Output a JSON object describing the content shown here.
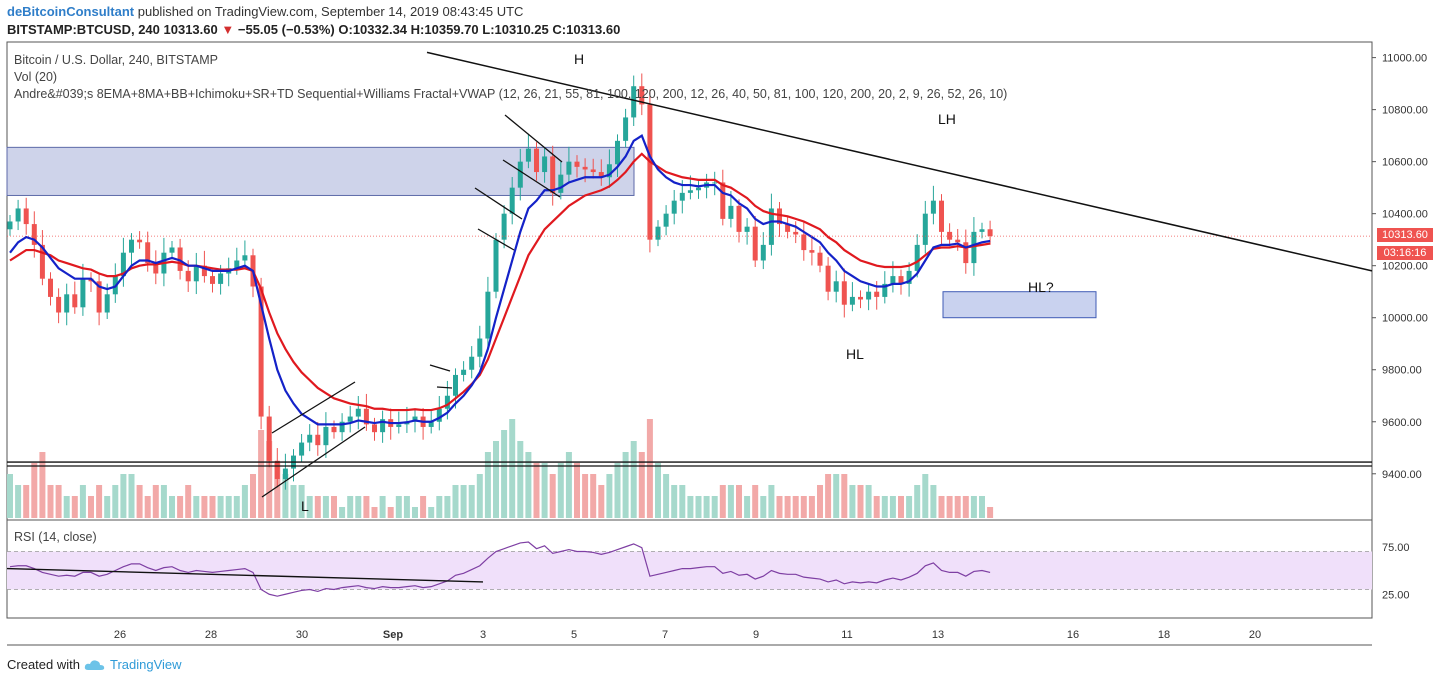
{
  "header": {
    "author": "deBitcoinConsultant",
    "published_text": "published on TradingView.com, September 14, 2019 08:43:45 UTC",
    "symbol": "BITSTAMP:BTCUSD, 240",
    "last": "10313.60",
    "change": "−55.05 (−0.53%)",
    "o_label": "O:",
    "o_value": "10332.34",
    "h_label": "H:",
    "h_value": "10359.70",
    "l_label": "L:",
    "l_value": "10310.25",
    "c_label": "C:",
    "c_value": "10313.60"
  },
  "legend": {
    "title": "Bitcoin / U.S. Dollar, 240, BITSTAMP",
    "vol": "Vol (20)",
    "indicator": "Andre&#039;s 8EMA+8MA+BB+Ichimoku+SR+TD Sequential+Williams Fractal+VWAP (12, 26, 21, 55, 81, 100, 120, 200, 12, 26, 40, 50, 81, 100, 120, 200, 20, 2, 9, 26, 52, 26, 10)",
    "rsi": "RSI (14, close)"
  },
  "price_badges": {
    "last": "10313.60",
    "countdown": "03:16:16"
  },
  "annotations": {
    "H": "H",
    "LH": "LH",
    "HL_q": "HL?",
    "HL": "HL",
    "L": "L"
  },
  "footer": {
    "created_with": "Created with",
    "brand": "TradingView"
  },
  "colors": {
    "up": "#26a69a",
    "down": "#ef5350",
    "ema_fast": "#1422c8",
    "ema_slow": "#e0191f",
    "zone": "#c5cbe6",
    "rsi_band": "#f0e0fa"
  },
  "chart_data": {
    "type": "candlestick",
    "timeframe": "240",
    "price_axis": {
      "ylim": [
        9230,
        11060
      ],
      "ticks": [
        "11000.00",
        "10800.00",
        "10600.00",
        "10400.00",
        "10200.00",
        "10000.00",
        "9800.00",
        "9600.00",
        "9400.00"
      ]
    },
    "rsi_axis": {
      "ylim": [
        0,
        100
      ],
      "ticks": [
        "75.00",
        "25.00"
      ],
      "band": [
        30,
        70
      ]
    },
    "x_axis": {
      "tick_labels": [
        "26",
        "28",
        "30",
        "Sep",
        "3",
        "5",
        "7",
        "9",
        "11",
        "13",
        "16",
        "18",
        "20"
      ]
    },
    "close_series": [
      10370,
      10420,
      10360,
      10280,
      10150,
      10080,
      10020,
      10090,
      10040,
      10150,
      10140,
      10020,
      10090,
      10160,
      10250,
      10300,
      10290,
      10210,
      10170,
      10250,
      10270,
      10180,
      10140,
      10200,
      10160,
      10130,
      10170,
      10190,
      10220,
      10240,
      10120,
      9620,
      9450,
      9380,
      9420,
      9470,
      9520,
      9550,
      9510,
      9580,
      9560,
      9600,
      9620,
      9650,
      9590,
      9560,
      9610,
      9580,
      9590,
      9600,
      9620,
      9580,
      9600,
      9650,
      9700,
      9780,
      9800,
      9850,
      9920,
      10100,
      10300,
      10400,
      10500,
      10600,
      10650,
      10560,
      10620,
      10480,
      10550,
      10600,
      10580,
      10570,
      10560,
      10540,
      10590,
      10680,
      10770,
      10890,
      10820,
      10300,
      10350,
      10400,
      10450,
      10480,
      10490,
      10500,
      10520,
      10520,
      10380,
      10430,
      10330,
      10350,
      10220,
      10280,
      10420,
      10360,
      10330,
      10320,
      10260,
      10250,
      10200,
      10100,
      10140,
      10050,
      10080,
      10070,
      10100,
      10080,
      10130,
      10160,
      10130,
      10180,
      10280,
      10400,
      10450,
      10330,
      10300,
      10290,
      10210,
      10330,
      10340,
      10313.6
    ],
    "ema_fast": [
      10250,
      10290,
      10310,
      10300,
      10270,
      10230,
      10190,
      10170,
      10150,
      10150,
      10150,
      10120,
      10110,
      10120,
      10160,
      10200,
      10220,
      10220,
      10210,
      10220,
      10230,
      10220,
      10200,
      10200,
      10190,
      10180,
      10180,
      10180,
      10190,
      10200,
      10180,
      10050,
      9920,
      9800,
      9720,
      9670,
      9630,
      9610,
      9590,
      9590,
      9590,
      9590,
      9595,
      9605,
      9600,
      9595,
      9600,
      9595,
      9595,
      9598,
      9605,
      9600,
      9600,
      9615,
      9635,
      9670,
      9700,
      9740,
      9790,
      9880,
      10000,
      10110,
      10220,
      10330,
      10420,
      10450,
      10490,
      10490,
      10500,
      10520,
      10530,
      10540,
      10540,
      10540,
      10550,
      10580,
      10620,
      10680,
      10700,
      10620,
      10570,
      10540,
      10520,
      10510,
      10510,
      10505,
      10510,
      10510,
      10480,
      10470,
      10440,
      10420,
      10380,
      10360,
      10370,
      10370,
      10360,
      10350,
      10330,
      10310,
      10290,
      10250,
      10220,
      10180,
      10160,
      10140,
      10130,
      10120,
      10120,
      10130,
      10130,
      10140,
      10170,
      10220,
      10270,
      10280,
      10280,
      10285,
      10270,
      10280,
      10290,
      10295
    ],
    "ema_slow": [
      10220,
      10240,
      10260,
      10260,
      10250,
      10240,
      10220,
      10210,
      10200,
      10190,
      10185,
      10170,
      10160,
      10160,
      10170,
      10190,
      10200,
      10205,
      10205,
      10210,
      10215,
      10210,
      10200,
      10200,
      10195,
      10190,
      10185,
      10185,
      10185,
      10190,
      10180,
      10110,
      10020,
      9940,
      9880,
      9830,
      9790,
      9760,
      9730,
      9710,
      9690,
      9680,
      9670,
      9665,
      9660,
      9650,
      9650,
      9645,
      9645,
      9645,
      9648,
      9645,
      9645,
      9652,
      9665,
      9690,
      9715,
      9745,
      9780,
      9840,
      9920,
      10000,
      10080,
      10160,
      10240,
      10290,
      10340,
      10370,
      10400,
      10430,
      10450,
      10470,
      10480,
      10490,
      10505,
      10530,
      10560,
      10600,
      10630,
      10600,
      10580,
      10560,
      10550,
      10540,
      10535,
      10530,
      10530,
      10530,
      10510,
      10500,
      10480,
      10460,
      10430,
      10410,
      10400,
      10395,
      10390,
      10380,
      10370,
      10355,
      10340,
      10310,
      10290,
      10260,
      10240,
      10220,
      10210,
      10200,
      10195,
      10195,
      10195,
      10200,
      10215,
      10240,
      10265,
      10270,
      10270,
      10275,
      10270,
      10275,
      10280,
      10285
    ],
    "rsi": [
      54,
      55,
      55,
      52,
      48,
      46,
      44,
      45,
      44,
      48,
      48,
      44,
      46,
      50,
      54,
      57,
      57,
      53,
      50,
      53,
      54,
      50,
      48,
      50,
      49,
      48,
      49,
      50,
      51,
      52,
      48,
      30,
      25,
      23,
      25,
      27,
      29,
      30,
      28,
      31,
      30,
      32,
      33,
      34,
      32,
      31,
      33,
      32,
      32,
      33,
      34,
      32,
      33,
      36,
      39,
      45,
      47,
      51,
      55,
      63,
      70,
      73,
      76,
      79,
      80,
      73,
      76,
      68,
      70,
      72,
      70,
      70,
      69,
      67,
      69,
      72,
      75,
      78,
      74,
      44,
      46,
      48,
      50,
      52,
      52,
      53,
      54,
      54,
      47,
      49,
      45,
      46,
      41,
      44,
      50,
      47,
      46,
      46,
      43,
      42,
      41,
      38,
      40,
      36,
      38,
      37,
      38,
      37,
      40,
      42,
      40,
      43,
      47,
      55,
      58,
      50,
      48,
      48,
      44,
      49,
      50,
      48
    ],
    "volume_rel": [
      0.4,
      0.3,
      0.3,
      0.5,
      0.6,
      0.3,
      0.3,
      0.2,
      0.2,
      0.3,
      0.2,
      0.3,
      0.2,
      0.3,
      0.4,
      0.4,
      0.3,
      0.2,
      0.3,
      0.3,
      0.2,
      0.2,
      0.3,
      0.2,
      0.2,
      0.2,
      0.2,
      0.2,
      0.2,
      0.3,
      0.4,
      0.8,
      0.7,
      0.5,
      0.4,
      0.3,
      0.3,
      0.2,
      0.2,
      0.2,
      0.2,
      0.1,
      0.2,
      0.2,
      0.2,
      0.1,
      0.2,
      0.1,
      0.2,
      0.2,
      0.1,
      0.2,
      0.1,
      0.2,
      0.2,
      0.3,
      0.3,
      0.3,
      0.4,
      0.6,
      0.7,
      0.8,
      0.9,
      0.7,
      0.6,
      0.5,
      0.5,
      0.4,
      0.5,
      0.6,
      0.5,
      0.4,
      0.4,
      0.3,
      0.4,
      0.5,
      0.6,
      0.7,
      0.6,
      0.9,
      0.5,
      0.4,
      0.3,
      0.3,
      0.2,
      0.2,
      0.2,
      0.2,
      0.3,
      0.3,
      0.3,
      0.2,
      0.3,
      0.2,
      0.3,
      0.2,
      0.2,
      0.2,
      0.2,
      0.2,
      0.3,
      0.4,
      0.4,
      0.4,
      0.3,
      0.3,
      0.3,
      0.2,
      0.2,
      0.2,
      0.2,
      0.2,
      0.3,
      0.4,
      0.3,
      0.2,
      0.2,
      0.2,
      0.2,
      0.2,
      0.2,
      0.1
    ],
    "horizontal_levels": [
      9430,
      9445
    ],
    "zones": [
      {
        "price_top": 10655,
        "price_bottom": 10470
      },
      {
        "price_top": 10100,
        "price_bottom": 10000
      }
    ],
    "trendline": {
      "from_price": 11020,
      "to_price": 10180
    },
    "rsi_trendline": {
      "from_value": 52,
      "to_value": 38
    },
    "legend": "top-left",
    "grid": false
  }
}
